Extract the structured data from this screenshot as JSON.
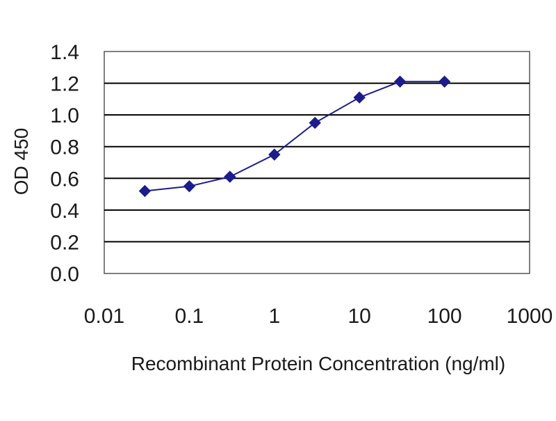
{
  "chart_data": {
    "type": "line",
    "title": "",
    "xlabel": "Recombinant Protein Concentration (ng/ml)",
    "ylabel": "OD 450",
    "x_scale": "log",
    "xlim": [
      0.01,
      1000
    ],
    "ylim": [
      0,
      1.4
    ],
    "x_ticks": [
      "0.01",
      "0.1",
      "1",
      "10",
      "100",
      "1000"
    ],
    "y_ticks": [
      "0.0",
      "0.2",
      "0.4",
      "0.6",
      "0.8",
      "1.0",
      "1.2",
      "1.4"
    ],
    "grid": "horizontal",
    "legend": "none",
    "series": [
      {
        "color": "#1c1c8c",
        "marker": "diamond",
        "x": [
          0.03,
          0.1,
          0.3,
          1,
          3,
          10,
          30,
          100
        ],
        "y": [
          0.52,
          0.55,
          0.61,
          0.75,
          0.95,
          1.11,
          1.21,
          1.21
        ]
      }
    ]
  },
  "colors": {
    "line": "#1c1c8c",
    "marker": "#1c1c8c",
    "grid": "#000000",
    "plot_border": "#555555",
    "background": "#ffffff"
  }
}
